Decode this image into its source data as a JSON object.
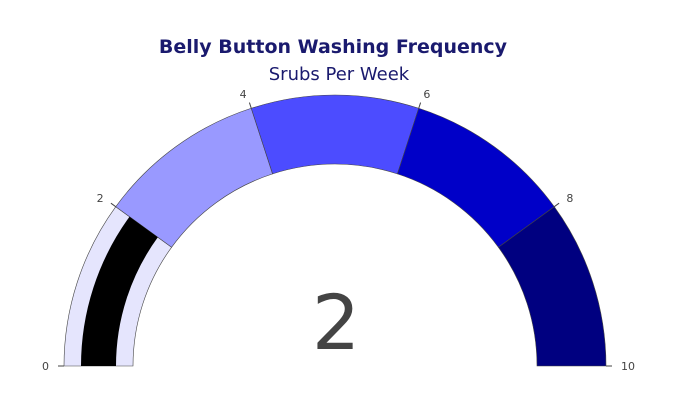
{
  "chart_data": {
    "type": "gauge",
    "title": "Belly Button Washing Frequency",
    "subtitle": "Srubs Per Week",
    "value": 2,
    "display_value": "2",
    "range": [
      0,
      10
    ],
    "ticks": [
      {
        "value": 0,
        "label": "0"
      },
      {
        "value": 2,
        "label": "2"
      },
      {
        "value": 4,
        "label": "4"
      },
      {
        "value": 6,
        "label": "6"
      },
      {
        "value": 8,
        "label": "8"
      },
      {
        "value": 10,
        "label": "10"
      }
    ],
    "steps": [
      {
        "from": 0,
        "to": 2,
        "color": "#e5e5fd"
      },
      {
        "from": 2,
        "to": 4,
        "color": "#9999ff"
      },
      {
        "from": 4,
        "to": 6,
        "color": "#4c4cff"
      },
      {
        "from": 6,
        "to": 8,
        "color": "#0000c8"
      },
      {
        "from": 8,
        "to": 10,
        "color": "#000080"
      }
    ],
    "bar_color": "#000000",
    "title_color": "#1a1a6e",
    "value_color": "#444444"
  }
}
